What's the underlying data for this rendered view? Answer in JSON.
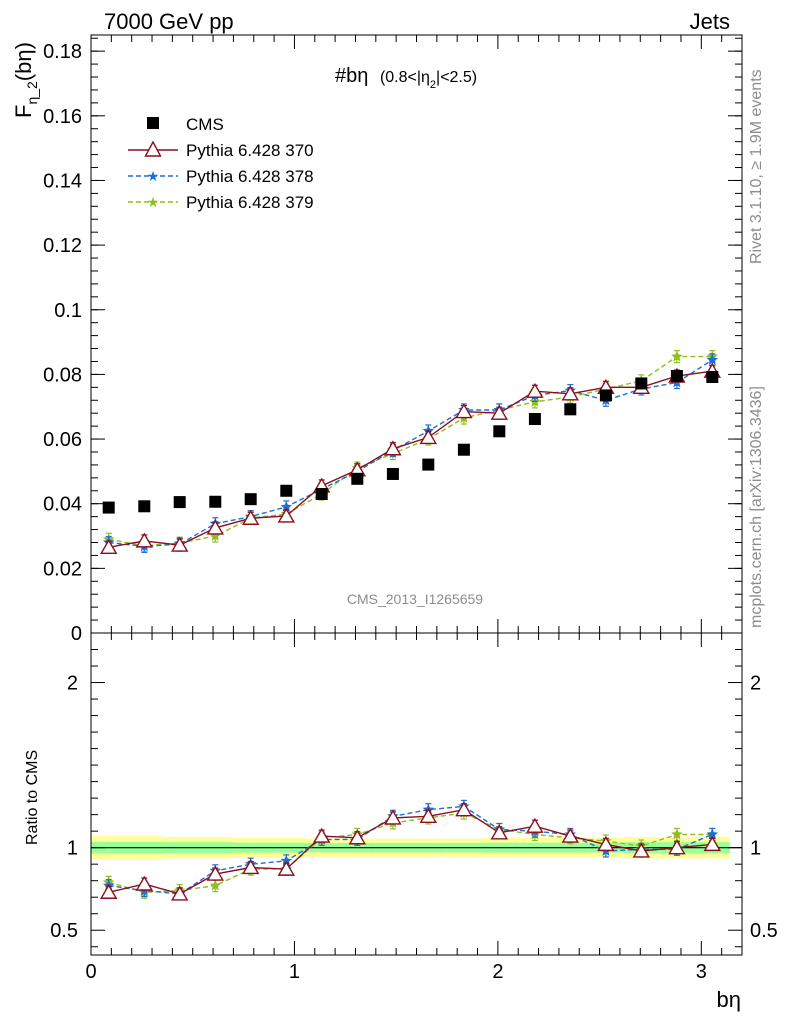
{
  "header": {
    "left": "7000 GeV pp",
    "right": "Jets"
  },
  "side_labels": {
    "rivet": "Rivet 3.1.10, ≥ 1.9M events",
    "mcplots": "mcplots.cern.ch [arXiv:1306.3436]"
  },
  "plot_title": {
    "main": "#bη",
    "sub_prefix": "(0.8<|η",
    "sub_index": "2",
    "sub_suffix": "|<2.5)"
  },
  "analysis_id": "CMS_2013_I1265659",
  "colors": {
    "cms": "#000000",
    "p370": "#8b0f1e",
    "p378": "#1c6fd6",
    "p379": "#8fbf1f",
    "band_outer": "#ffff99",
    "band_inner": "#99ff99"
  },
  "chart_data": [
    {
      "type": "scatter",
      "ylabel": {
        "main": "F",
        "sub": "η_2",
        "tail": "(bη)"
      },
      "xlabel": "bη",
      "xlim": [
        0,
        3.2
      ],
      "ylim": [
        0,
        0.185
      ],
      "yticks": [
        "0",
        "0.02",
        "0.04",
        "0.06",
        "0.08",
        "0.1",
        "0.12",
        "0.14",
        "0.16",
        "0.18"
      ],
      "x": [
        0.087,
        0.262,
        0.436,
        0.611,
        0.785,
        0.96,
        1.134,
        1.309,
        1.484,
        1.658,
        1.833,
        2.007,
        2.182,
        2.356,
        2.531,
        2.705,
        2.88,
        3.054
      ],
      "series": [
        {
          "name": "CMS",
          "marker": "square",
          "values": [
            0.0388,
            0.0392,
            0.0405,
            0.0406,
            0.0414,
            0.044,
            0.043,
            0.0477,
            0.0492,
            0.0521,
            0.0567,
            0.0624,
            0.0662,
            0.0692,
            0.0735,
            0.0772,
            0.0795,
            0.0792
          ]
        },
        {
          "name": "Pythia 6.428 370",
          "marker": "triangle",
          "values": [
            0.0265,
            0.0285,
            0.0272,
            0.0325,
            0.0355,
            0.0362,
            0.0455,
            0.0505,
            0.057,
            0.0605,
            0.0685,
            0.068,
            0.0748,
            0.074,
            0.076,
            0.076,
            0.0795,
            0.081
          ]
        },
        {
          "name": "Pythia 6.428 378",
          "marker": "star",
          "values": [
            0.028,
            0.0268,
            0.0275,
            0.0338,
            0.036,
            0.039,
            0.0445,
            0.05,
            0.0565,
            0.0625,
            0.069,
            0.069,
            0.0735,
            0.075,
            0.072,
            0.0755,
            0.0775,
            0.0845
          ]
        },
        {
          "name": "Pythia 6.428 379",
          "marker": "star",
          "values": [
            0.029,
            0.027,
            0.0278,
            0.03,
            0.0355,
            0.0368,
            0.043,
            0.051,
            0.0555,
            0.06,
            0.0665,
            0.069,
            0.0715,
            0.073,
            0.0755,
            0.078,
            0.0855,
            0.0855
          ]
        }
      ]
    },
    {
      "type": "scatter",
      "ylabel": "Ratio to CMS",
      "xlabel": "bη",
      "xlim": [
        0,
        3.2
      ],
      "ylim": [
        0.35,
        2.3
      ],
      "yticks_left": [
        "0.5",
        "1",
        "2"
      ],
      "yticks_right": [
        "0.5",
        "1",
        "2"
      ],
      "xticks": [
        "0",
        "1",
        "2",
        "3"
      ],
      "x": [
        0.087,
        0.262,
        0.436,
        0.611,
        0.785,
        0.96,
        1.134,
        1.309,
        1.484,
        1.658,
        1.833,
        2.007,
        2.182,
        2.356,
        2.531,
        2.705,
        2.88,
        3.054
      ],
      "series": [
        {
          "name": "Pythia 6.428 370",
          "values": [
            0.73,
            0.78,
            0.72,
            0.84,
            0.88,
            0.87,
            1.07,
            1.06,
            1.18,
            1.19,
            1.23,
            1.09,
            1.13,
            1.07,
            1.02,
            0.98,
            1.0,
            1.02
          ]
        },
        {
          "name": "Pythia 6.428 378",
          "values": [
            0.77,
            0.74,
            0.72,
            0.86,
            0.9,
            0.92,
            1.05,
            1.05,
            1.19,
            1.23,
            1.25,
            1.11,
            1.1,
            1.08,
            0.98,
            0.99,
            0.99,
            1.08
          ]
        },
        {
          "name": "Pythia 6.428 379",
          "values": [
            0.79,
            0.73,
            0.74,
            0.77,
            0.87,
            0.87,
            1.06,
            1.08,
            1.15,
            1.18,
            1.21,
            1.11,
            1.08,
            1.06,
            1.04,
            1.01,
            1.08,
            1.08
          ]
        }
      ],
      "band_outer_halfwidth": [
        0.07,
        0.07,
        0.065,
        0.065,
        0.06,
        0.06,
        0.055,
        0.055,
        0.055,
        0.055,
        0.055,
        0.06,
        0.06,
        0.06,
        0.06,
        0.065,
        0.065,
        0.065
      ],
      "band_inner_halfwidth": [
        0.035,
        0.035,
        0.033,
        0.033,
        0.03,
        0.03,
        0.028,
        0.028,
        0.028,
        0.028,
        0.028,
        0.03,
        0.03,
        0.03,
        0.03,
        0.033,
        0.033,
        0.033
      ]
    }
  ]
}
